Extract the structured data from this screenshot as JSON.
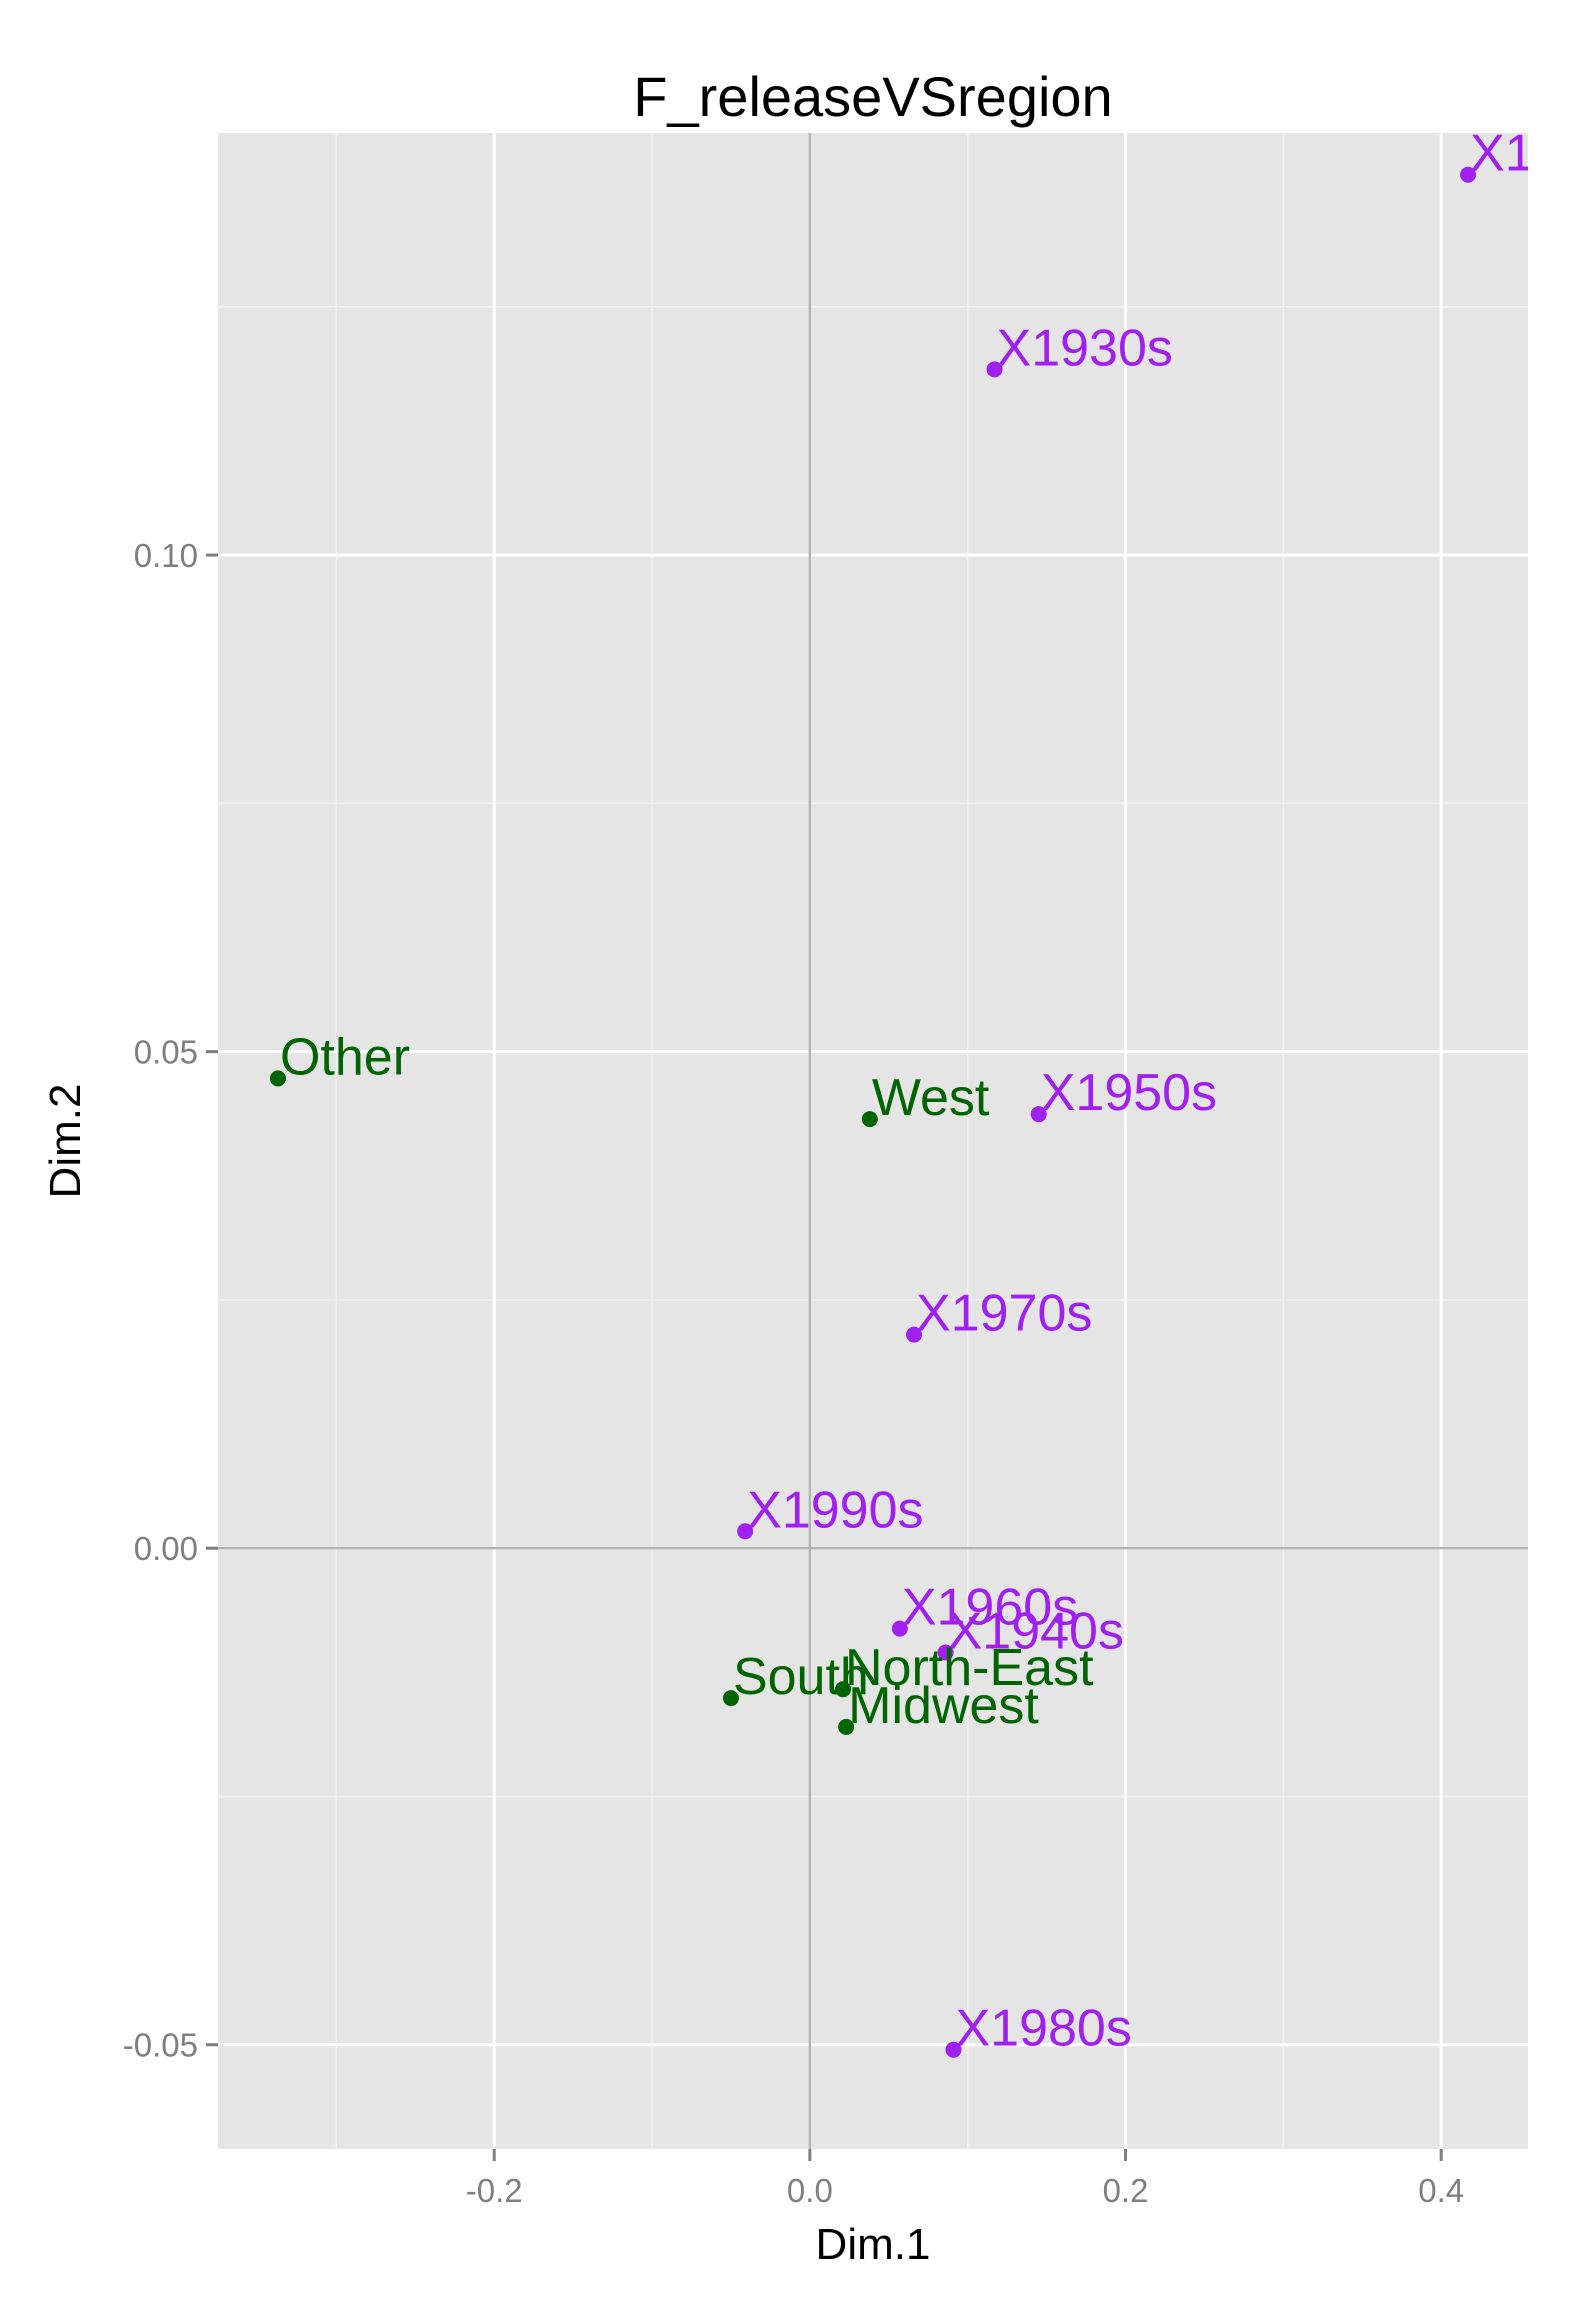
{
  "chart_data": {
    "type": "scatter",
    "title": "F_releaseVSregion",
    "xlabel": "Dim.1",
    "ylabel": "Dim.2",
    "xlim": [
      -0.375,
      0.455
    ],
    "ylim": [
      -0.0605,
      0.1425
    ],
    "x_ticks": [
      -0.2,
      0.0,
      0.2,
      0.4
    ],
    "x_tick_labels": [
      "-0.2",
      "0.0",
      "0.2",
      "0.4"
    ],
    "y_ticks": [
      -0.05,
      0.0,
      0.05,
      0.1
    ],
    "y_tick_labels": [
      "-0.05",
      "0.00",
      "0.05",
      "0.10"
    ],
    "grid": true,
    "reference_lines": {
      "x": 0,
      "y": 0
    },
    "series": [
      {
        "group": "release",
        "color": "#a020f0",
        "points": [
          {
            "label": "X1",
            "x": 0.417,
            "y": 0.1383
          },
          {
            "label": "X1930s",
            "x": 0.117,
            "y": 0.1187
          },
          {
            "label": "X1950s",
            "x": 0.145,
            "y": 0.0437
          },
          {
            "label": "X1970s",
            "x": 0.066,
            "y": 0.0215
          },
          {
            "label": "X1990s",
            "x": -0.041,
            "y": 0.0017
          },
          {
            "label": "X1960s",
            "x": 0.057,
            "y": -0.0081
          },
          {
            "label": "X1940s",
            "x": 0.086,
            "y": -0.0105
          },
          {
            "label": "X1980s",
            "x": 0.091,
            "y": -0.0505
          }
        ]
      },
      {
        "group": "region",
        "color": "#006400",
        "points": [
          {
            "label": "Other",
            "x": -0.337,
            "y": 0.0473
          },
          {
            "label": "West",
            "x": 0.038,
            "y": 0.0432
          },
          {
            "label": "South",
            "x": -0.05,
            "y": -0.0151
          },
          {
            "label": "North-East",
            "x": 0.021,
            "y": -0.0142
          },
          {
            "label": "Midwest",
            "x": 0.023,
            "y": -0.018
          }
        ]
      }
    ]
  }
}
